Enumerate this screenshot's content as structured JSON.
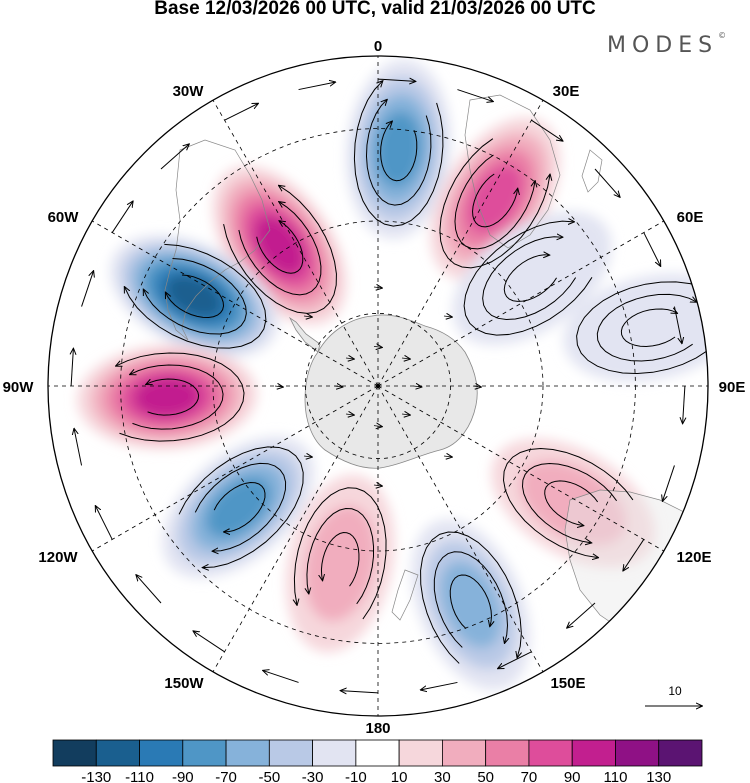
{
  "title": "Base 12/03/2026 00 UTC, valid 21/03/2026 00 UTC",
  "brand": {
    "name": "MODES",
    "mark": "©"
  },
  "longitude_labels": [
    {
      "id": "0",
      "text": "0"
    },
    {
      "id": "30E",
      "text": "30E"
    },
    {
      "id": "60E",
      "text": "60E"
    },
    {
      "id": "90E",
      "text": "90E"
    },
    {
      "id": "120E",
      "text": "120E"
    },
    {
      "id": "150E",
      "text": "150E"
    },
    {
      "id": "180",
      "text": "180"
    },
    {
      "id": "150W",
      "text": "150W"
    },
    {
      "id": "120W",
      "text": "120W"
    },
    {
      "id": "90W",
      "text": "90W"
    },
    {
      "id": "60W",
      "text": "60W"
    },
    {
      "id": "30W",
      "text": "30W"
    }
  ],
  "vector_reference": {
    "label": "10"
  },
  "colorbar": {
    "colors": [
      "#123d5e",
      "#1a5f8f",
      "#2a7ab5",
      "#4f96c6",
      "#86b2da",
      "#b9c9e6",
      "#e2e4f2",
      "#ffffff",
      "#f6d7dc",
      "#f1adbe",
      "#ea7fa6",
      "#de4d9b",
      "#c21f8f",
      "#8f1185",
      "#5b1472"
    ],
    "tick_labels": [
      "-130",
      "-110",
      "-90",
      "-70",
      "-50",
      "-30",
      "-10",
      "10",
      "30",
      "50",
      "70",
      "90",
      "110",
      "130"
    ]
  },
  "anomaly_centers": [
    {
      "name": "anomaly-positive-30w",
      "lon": -35,
      "colat": 0.52,
      "value": 100
    },
    {
      "name": "anomaly-negative-0",
      "lon": 5,
      "colat": 0.72,
      "value": -90
    },
    {
      "name": "anomaly-positive-30e",
      "lon": 32,
      "colat": 0.67,
      "value": 90
    },
    {
      "name": "anomaly-negative-60w",
      "lon": -64,
      "colat": 0.62,
      "value": -120
    },
    {
      "name": "anomaly-positive-90w",
      "lon": -93,
      "colat": 0.64,
      "value": 110
    },
    {
      "name": "anomaly-negative-125w",
      "lon": -131,
      "colat": 0.56,
      "value": -80
    },
    {
      "name": "anomaly-positive-165w",
      "lon": -168,
      "colat": 0.55,
      "value": 50
    },
    {
      "name": "anomaly-negative-150e",
      "lon": 157,
      "colat": 0.72,
      "value": -70
    },
    {
      "name": "anomaly-positive-120e",
      "lon": 121,
      "colat": 0.69,
      "value": 50
    },
    {
      "name": "anomaly-negative-70e",
      "lon": 78,
      "colat": 0.85,
      "value": -30
    },
    {
      "name": "anomaly-negative-50e",
      "lon": 55,
      "colat": 0.57,
      "value": -20
    }
  ]
}
